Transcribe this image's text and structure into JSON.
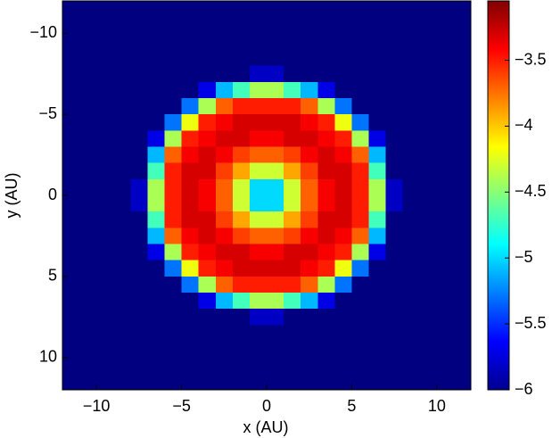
{
  "chart_data": {
    "type": "heatmap",
    "x_label": "x (AU)",
    "y_label": "y (AU)",
    "x": [
      -11.5,
      -10.5,
      -9.5,
      -8.5,
      -7.5,
      -6.5,
      -5.5,
      -4.5,
      -3.5,
      -2.5,
      -1.5,
      -0.5,
      0.5,
      1.5,
      2.5,
      3.5,
      4.5,
      5.5,
      6.5,
      7.5,
      8.5,
      9.5,
      10.5,
      11.5
    ],
    "y": [
      -11.5,
      -10.5,
      -9.5,
      -8.5,
      -7.5,
      -6.5,
      -5.5,
      -4.5,
      -3.5,
      -2.5,
      -1.5,
      -0.5,
      0.5,
      1.5,
      2.5,
      3.5,
      4.5,
      5.5,
      6.5,
      7.5,
      8.5,
      9.5,
      10.5,
      11.5
    ],
    "z": [
      [
        -6,
        -6,
        -6,
        -6,
        -6,
        -6,
        -6,
        -6,
        -6,
        -6,
        -6,
        -6,
        -6,
        -6,
        -6,
        -6,
        -6,
        -6,
        -6,
        -6,
        -6,
        -6,
        -6,
        -6
      ],
      [
        -6,
        -6,
        -6,
        -6,
        -6,
        -6,
        -6,
        -6,
        -6,
        -6,
        -6,
        -6,
        -6,
        -6,
        -6,
        -6,
        -6,
        -6,
        -6,
        -6,
        -6,
        -6,
        -6,
        -6
      ],
      [
        -6,
        -6,
        -6,
        -6,
        -6,
        -6,
        -6,
        -6,
        -6,
        -6,
        -6,
        -6,
        -6,
        -6,
        -6,
        -6,
        -6,
        -6,
        -6,
        -6,
        -6,
        -6,
        -6,
        -6
      ],
      [
        -6,
        -6,
        -6,
        -6,
        -6,
        -6,
        -6,
        -6,
        -6,
        -6,
        -6,
        -6,
        -6,
        -6,
        -6,
        -6,
        -6,
        -6,
        -6,
        -6,
        -6,
        -6,
        -6,
        -6
      ],
      [
        -6,
        -6,
        -6,
        -6,
        -6,
        -6,
        -6,
        -6,
        -6,
        -6,
        -6,
        -5.8,
        -5.8,
        -6,
        -6,
        -6,
        -6,
        -6,
        -6,
        -6,
        -6,
        -6,
        -6,
        -6
      ],
      [
        -6,
        -6,
        -6,
        -6,
        -6,
        -6,
        -6,
        -6,
        -5.7,
        -5.1,
        -4.7,
        -4.4,
        -4.4,
        -4.7,
        -5.1,
        -5.7,
        -6,
        -6,
        -6,
        -6,
        -6,
        -6,
        -6,
        -6
      ],
      [
        -6,
        -6,
        -6,
        -6,
        -6,
        -6,
        -6,
        -5.3,
        -4.4,
        -3.7,
        -3.5,
        -3.5,
        -3.5,
        -3.5,
        -3.7,
        -4.4,
        -5.3,
        -6,
        -6,
        -6,
        -6,
        -6,
        -6,
        -6
      ],
      [
        -6,
        -6,
        -6,
        -6,
        -6,
        -6,
        -5.3,
        -4.2,
        -3.5,
        -3.4,
        -3.3,
        -3.3,
        -3.3,
        -3.3,
        -3.4,
        -3.5,
        -4.2,
        -5.3,
        -6,
        -6,
        -6,
        -6,
        -6,
        -6
      ],
      [
        -6,
        -6,
        -6,
        -6,
        -6,
        -5.7,
        -4.4,
        -3.5,
        -3.4,
        -3.3,
        -3.3,
        -3.4,
        -3.4,
        -3.3,
        -3.3,
        -3.4,
        -3.5,
        -4.4,
        -5.7,
        -6,
        -6,
        -6,
        -6,
        -6
      ],
      [
        -6,
        -6,
        -6,
        -6,
        -6,
        -5.1,
        -3.7,
        -3.4,
        -3.3,
        -3.4,
        -3.6,
        -3.7,
        -3.7,
        -3.6,
        -3.4,
        -3.3,
        -3.4,
        -3.7,
        -5.1,
        -6,
        -6,
        -6,
        -6,
        -6
      ],
      [
        -6,
        -6,
        -6,
        -6,
        -6,
        -4.7,
        -3.5,
        -3.3,
        -3.3,
        -3.6,
        -3.9,
        -4.3,
        -4.3,
        -3.9,
        -3.6,
        -3.3,
        -3.3,
        -3.5,
        -4.7,
        -6,
        -6,
        -6,
        -6,
        -6
      ],
      [
        -6,
        -6,
        -6,
        -6,
        -5.8,
        -4.4,
        -3.5,
        -3.3,
        -3.4,
        -3.7,
        -4.3,
        -5,
        -5,
        -4.3,
        -3.7,
        -3.4,
        -3.3,
        -3.5,
        -4.4,
        -5.8,
        -6,
        -6,
        -6,
        -6
      ],
      [
        -6,
        -6,
        -6,
        -6,
        -5.8,
        -4.4,
        -3.5,
        -3.3,
        -3.4,
        -3.7,
        -4.3,
        -5,
        -5,
        -4.3,
        -3.7,
        -3.4,
        -3.3,
        -3.5,
        -4.4,
        -5.8,
        -6,
        -6,
        -6,
        -6
      ],
      [
        -6,
        -6,
        -6,
        -6,
        -6,
        -4.7,
        -3.5,
        -3.3,
        -3.3,
        -3.6,
        -3.9,
        -4.3,
        -4.3,
        -3.9,
        -3.6,
        -3.3,
        -3.3,
        -3.5,
        -4.7,
        -6,
        -6,
        -6,
        -6,
        -6
      ],
      [
        -6,
        -6,
        -6,
        -6,
        -6,
        -5.1,
        -3.7,
        -3.4,
        -3.3,
        -3.4,
        -3.6,
        -3.7,
        -3.7,
        -3.6,
        -3.4,
        -3.3,
        -3.4,
        -3.7,
        -5.1,
        -6,
        -6,
        -6,
        -6,
        -6
      ],
      [
        -6,
        -6,
        -6,
        -6,
        -6,
        -5.7,
        -4.4,
        -3.5,
        -3.4,
        -3.3,
        -3.3,
        -3.4,
        -3.4,
        -3.3,
        -3.3,
        -3.4,
        -3.5,
        -4.4,
        -5.7,
        -6,
        -6,
        -6,
        -6,
        -6
      ],
      [
        -6,
        -6,
        -6,
        -6,
        -6,
        -6,
        -5.3,
        -4.2,
        -3.5,
        -3.4,
        -3.3,
        -3.3,
        -3.3,
        -3.3,
        -3.4,
        -3.5,
        -4.2,
        -5.3,
        -6,
        -6,
        -6,
        -6,
        -6,
        -6
      ],
      [
        -6,
        -6,
        -6,
        -6,
        -6,
        -6,
        -6,
        -5.3,
        -4.4,
        -3.7,
        -3.5,
        -3.5,
        -3.5,
        -3.5,
        -3.7,
        -4.4,
        -5.3,
        -6,
        -6,
        -6,
        -6,
        -6,
        -6,
        -6
      ],
      [
        -6,
        -6,
        -6,
        -6,
        -6,
        -6,
        -6,
        -6,
        -5.7,
        -5.1,
        -4.7,
        -4.4,
        -4.4,
        -4.7,
        -5.1,
        -5.7,
        -6,
        -6,
        -6,
        -6,
        -6,
        -6,
        -6,
        -6
      ],
      [
        -6,
        -6,
        -6,
        -6,
        -6,
        -6,
        -6,
        -6,
        -6,
        -6,
        -6,
        -5.8,
        -5.8,
        -6,
        -6,
        -6,
        -6,
        -6,
        -6,
        -6,
        -6,
        -6,
        -6,
        -6
      ],
      [
        -6,
        -6,
        -6,
        -6,
        -6,
        -6,
        -6,
        -6,
        -6,
        -6,
        -6,
        -6,
        -6,
        -6,
        -6,
        -6,
        -6,
        -6,
        -6,
        -6,
        -6,
        -6,
        -6,
        -6
      ],
      [
        -6,
        -6,
        -6,
        -6,
        -6,
        -6,
        -6,
        -6,
        -6,
        -6,
        -6,
        -6,
        -6,
        -6,
        -6,
        -6,
        -6,
        -6,
        -6,
        -6,
        -6,
        -6,
        -6,
        -6
      ],
      [
        -6,
        -6,
        -6,
        -6,
        -6,
        -6,
        -6,
        -6,
        -6,
        -6,
        -6,
        -6,
        -6,
        -6,
        -6,
        -6,
        -6,
        -6,
        -6,
        -6,
        -6,
        -6,
        -6,
        -6
      ],
      [
        -6,
        -6,
        -6,
        -6,
        -6,
        -6,
        -6,
        -6,
        -6,
        -6,
        -6,
        -6,
        -6,
        -6,
        -6,
        -6,
        -6,
        -6,
        -6,
        -6,
        -6,
        -6,
        -6,
        -6
      ]
    ],
    "xlim": [
      -12,
      12
    ],
    "ylim": [
      -12,
      12
    ],
    "y_direction": "reverse",
    "xticks": [
      {
        "value": -10,
        "label": "−10"
      },
      {
        "value": -5,
        "label": "−5"
      },
      0,
      5,
      10
    ],
    "yticks": [
      {
        "value": -10,
        "label": "−10"
      },
      {
        "value": -5,
        "label": "−5"
      },
      0,
      5,
      10
    ],
    "colormap": "jet",
    "clim": [
      -6,
      -3.05
    ],
    "cticks": [
      {
        "value": -6,
        "label": "−6"
      },
      {
        "value": -5.5,
        "label": "−5.5"
      },
      {
        "value": -5,
        "label": "−5"
      },
      {
        "value": -4.5,
        "label": "−4.5"
      },
      {
        "value": -4,
        "label": "−4"
      },
      {
        "value": -3.5,
        "label": "−3.5"
      }
    ]
  }
}
